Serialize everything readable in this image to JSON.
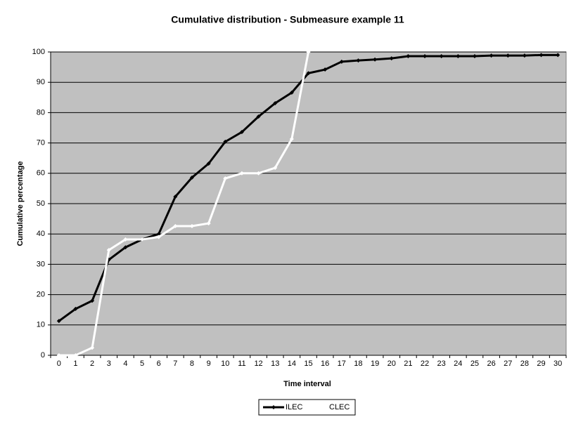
{
  "chart_data": {
    "type": "line",
    "title": "Cumulative distribution - Submeasure example 11",
    "x_label": "Time interval",
    "y_label": "Cumulative percentage",
    "categories": [
      0,
      1,
      2,
      3,
      4,
      5,
      6,
      7,
      8,
      9,
      10,
      11,
      12,
      13,
      14,
      15,
      16,
      17,
      18,
      19,
      20,
      21,
      22,
      23,
      24,
      25,
      26,
      27,
      28,
      29,
      30
    ],
    "series": [
      {
        "name": "ILEC",
        "color": "#000000",
        "values": [
          11.3,
          15.3,
          18,
          31.5,
          35.6,
          38.2,
          40,
          52.3,
          58.6,
          63.2,
          70.4,
          73.6,
          78.7,
          83.1,
          86.6,
          93,
          94.2,
          96.8,
          97.2,
          97.5,
          97.9,
          98.6,
          98.6,
          98.6,
          98.6,
          98.6,
          98.8,
          98.8,
          98.8,
          99,
          99
        ]
      },
      {
        "name": "CLEC",
        "color": "#ffffff",
        "values": [
          0,
          0,
          2.5,
          34.7,
          38.2,
          38.2,
          39,
          42.6,
          42.6,
          43.5,
          58.3,
          60,
          60,
          61.8,
          71.3,
          100,
          null,
          null,
          null,
          null,
          null,
          null,
          null,
          null,
          null,
          null,
          null,
          null,
          null,
          null,
          null
        ]
      }
    ],
    "ylim": [
      0,
      100
    ],
    "yticks": [
      0,
      10,
      20,
      30,
      40,
      50,
      60,
      70,
      80,
      90,
      100
    ],
    "grid": true,
    "plot_background": "#c0c0c0",
    "legend": "bottom"
  }
}
